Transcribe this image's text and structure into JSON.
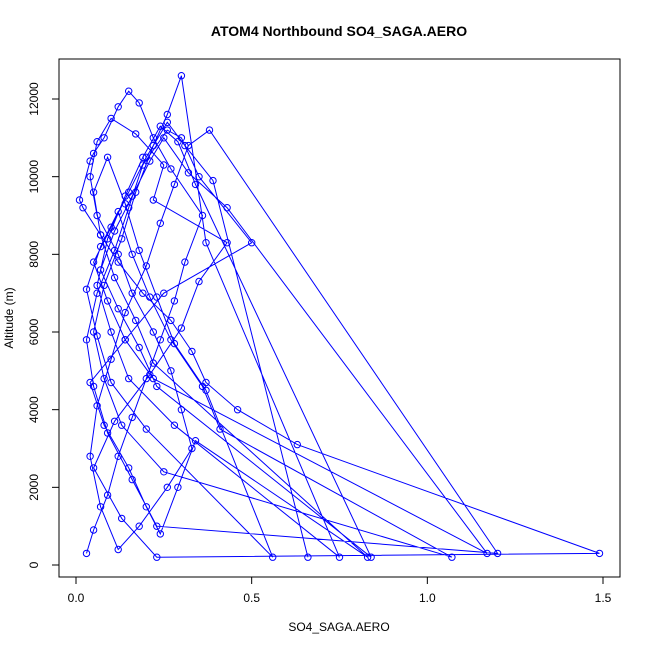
{
  "chart_data": {
    "type": "line",
    "title": "ATOM4 Northbound SO4_SAGA.AERO",
    "xlabel": "SO4_SAGA.AERO",
    "ylabel": "Altitude (m)",
    "xlim": [
      0,
      1.5
    ],
    "ylim": [
      0,
      12500
    ],
    "xticks": [
      0.0,
      0.5,
      1.0,
      1.5
    ],
    "xtick_labels": [
      "0.0",
      "0.5",
      "1.0",
      "1.5"
    ],
    "yticks": [
      0,
      2000,
      4000,
      6000,
      8000,
      10000,
      12000
    ],
    "ytick_labels": [
      "0",
      "2000",
      "4000",
      "6000",
      "8000",
      "10000",
      "12000"
    ],
    "grid": false,
    "color": "#0000ff",
    "marker": "open-circle",
    "series": [
      {
        "x": [
          0.03,
          0.05,
          0.09,
          0.12,
          0.16,
          0.2,
          0.24,
          0.28,
          0.31,
          0.36,
          0.27,
          0.22,
          0.18,
          0.15,
          0.12,
          0.08,
          0.05,
          0.04,
          0.01,
          0.02,
          0.07,
          0.12,
          0.19,
          0.27,
          0.33,
          0.37,
          0.46,
          0.63,
          1.49,
          0.23,
          0.13,
          0.05,
          0.11,
          0.21,
          0.3,
          0.35,
          0.43,
          0.22,
          0.25,
          0.17,
          0.1,
          0.06,
          0.04,
          0.06,
          0.12,
          0.16,
          0.22,
          0.27,
          0.3,
          0.33,
          0.26,
          0.18,
          0.12,
          0.07,
          0.04,
          0.06,
          0.1,
          0.14,
          0.2,
          0.24,
          0.28,
          0.32,
          0.38,
          1.2,
          0.23,
          0.16,
          0.09,
          0.05,
          0.03,
          0.06,
          0.11,
          0.15,
          0.19,
          0.26,
          0.3,
          0.35,
          0.5,
          0.25,
          0.14,
          0.04,
          0.08,
          0.15,
          0.2,
          0.24,
          0.29,
          0.34,
          0.83,
          0.22,
          0.17,
          0.11,
          0.07,
          0.05,
          0.09,
          0.14,
          0.18,
          0.23,
          0.28,
          0.37,
          0.56,
          0.2,
          0.1,
          0.06,
          0.03,
          0.07,
          0.12,
          0.16,
          0.21,
          0.27,
          0.36,
          0.41,
          1.07,
          0.25,
          0.13,
          0.08,
          0.05,
          0.08,
          0.13,
          0.17,
          0.22,
          0.26,
          0.3,
          0.37,
          0.75,
          0.28,
          0.15,
          0.1,
          0.06,
          0.09,
          0.14,
          0.19,
          0.24,
          0.29,
          0.34,
          0.84,
          0.23,
          0.18,
          0.12,
          0.07,
          0.11,
          0.16,
          0.21,
          0.25,
          0.32,
          0.43,
          1.17,
          0.22,
          0.14,
          0.09,
          0.05,
          0.1,
          0.15,
          0.2,
          0.26,
          0.31,
          0.39,
          0.66
        ],
        "y": [
          300,
          900,
          1800,
          2800,
          3800,
          4800,
          5800,
          6800,
          7800,
          9000,
          10200,
          11000,
          11900,
          12200,
          11800,
          11000,
          10600,
          10400,
          9400,
          9200,
          8500,
          7800,
          7000,
          6300,
          5500,
          4700,
          4000,
          3100,
          300,
          200,
          1200,
          2500,
          3700,
          4900,
          6100,
          7300,
          8300,
          9400,
          10300,
          11100,
          11500,
          10900,
          10000,
          9000,
          8000,
          7000,
          6000,
          5000,
          4000,
          3000,
          2000,
          1000,
          400,
          1500,
          2800,
          4100,
          5300,
          6500,
          7700,
          8800,
          9800,
          10800,
          11200,
          300,
          1000,
          2200,
          3400,
          4600,
          5800,
          7000,
          8100,
          9200,
          10300,
          11200,
          11000,
          10000,
          8300,
          7000,
          5800,
          4700,
          3600,
          2500,
          1500,
          800,
          2000,
          3200,
          200,
          5200,
          6300,
          7400,
          8500,
          9600,
          10500,
          9300,
          8100,
          6900,
          5700,
          4500,
          200,
          3500,
          4700,
          5900,
          7100,
          8200,
          9100,
          8000,
          6900,
          5800,
          4600,
          3500,
          200,
          2400,
          3600,
          4800,
          6000,
          7200,
          8400,
          9600,
          10800,
          11600,
          12600,
          8300,
          200,
          3600,
          4800,
          6000,
          7200,
          8400,
          9500,
          10500,
          11300,
          10900,
          9800,
          200,
          4600,
          5600,
          6600,
          7600,
          8600,
          9500,
          10400,
          11000,
          10100,
          9200,
          300,
          4800,
          5800,
          6800,
          7800,
          8700,
          9600,
          10500,
          11400,
          10800,
          9900,
          200
        ]
      }
    ]
  }
}
